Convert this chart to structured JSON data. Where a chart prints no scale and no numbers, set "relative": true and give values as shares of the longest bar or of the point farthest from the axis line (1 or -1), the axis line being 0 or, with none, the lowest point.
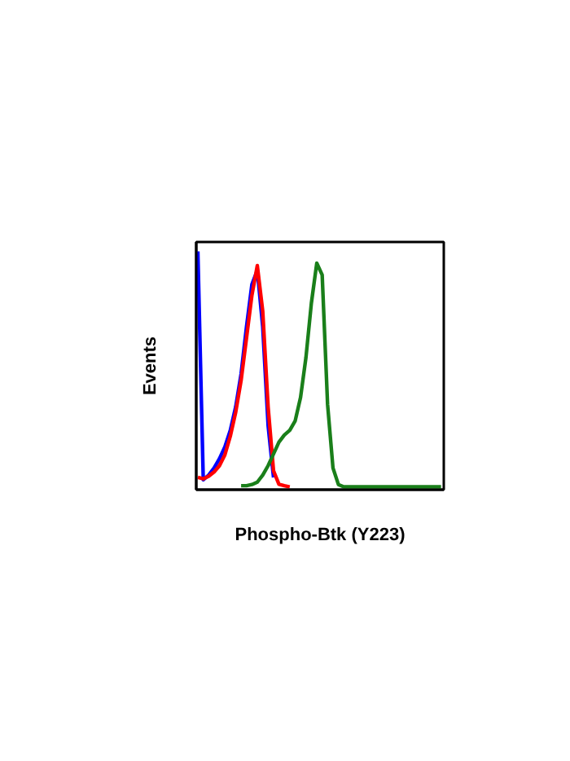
{
  "chart_data": {
    "type": "line",
    "xlabel": "Phospho-Btk (Y223)",
    "ylabel": "Events",
    "relative": true,
    "marker": "none",
    "line_style": "solid",
    "categories": [
      null,
      null,
      null,
      null,
      null,
      null,
      null,
      null,
      null,
      null,
      null,
      null,
      null,
      null,
      null,
      null,
      null,
      null,
      null,
      null,
      null,
      null,
      null,
      null,
      null,
      null,
      null,
      null,
      null,
      null,
      null,
      null,
      null,
      null,
      null,
      null,
      null,
      null,
      null,
      null,
      null,
      null,
      null,
      null,
      null,
      null
    ],
    "series": [
      {
        "color": "#0000ff",
        "values": [
          1.0,
          0.03,
          0.05,
          0.08,
          0.12,
          0.17,
          0.24,
          0.34,
          0.48,
          0.68,
          0.86,
          0.92,
          0.68,
          0.26,
          0.04,
          null,
          null,
          null,
          null,
          null,
          null,
          null,
          null,
          null,
          null,
          null,
          null,
          null,
          null,
          null,
          null,
          null,
          null,
          null,
          null,
          null,
          null,
          null,
          null,
          null,
          null,
          null,
          null,
          null,
          null,
          null
        ]
      },
      {
        "color": "#ff0000",
        "values": [
          0.04,
          0.034,
          0.045,
          0.063,
          0.09,
          0.136,
          0.215,
          0.317,
          0.452,
          0.633,
          0.814,
          0.94,
          0.747,
          0.339,
          0.068,
          0.011,
          0.005,
          0,
          null,
          null,
          null,
          null,
          null,
          null,
          null,
          null,
          null,
          null,
          null,
          null,
          null,
          null,
          null,
          null,
          null,
          null,
          null,
          null,
          null,
          null,
          null,
          null,
          null,
          null,
          null,
          null
        ]
      },
      {
        "color": "#1a7f1a",
        "values": [
          null,
          null,
          null,
          null,
          null,
          null,
          null,
          null,
          0.005,
          0.005,
          0.01,
          0.02,
          0.05,
          0.09,
          0.14,
          0.19,
          0.22,
          0.24,
          0.28,
          0.38,
          0.55,
          0.78,
          0.95,
          0.9,
          0.35,
          0.08,
          0.01,
          0,
          0,
          0,
          0,
          0,
          0,
          0,
          0,
          0,
          0,
          0,
          0,
          0,
          0,
          0,
          0,
          0,
          0,
          0
        ]
      }
    ]
  }
}
